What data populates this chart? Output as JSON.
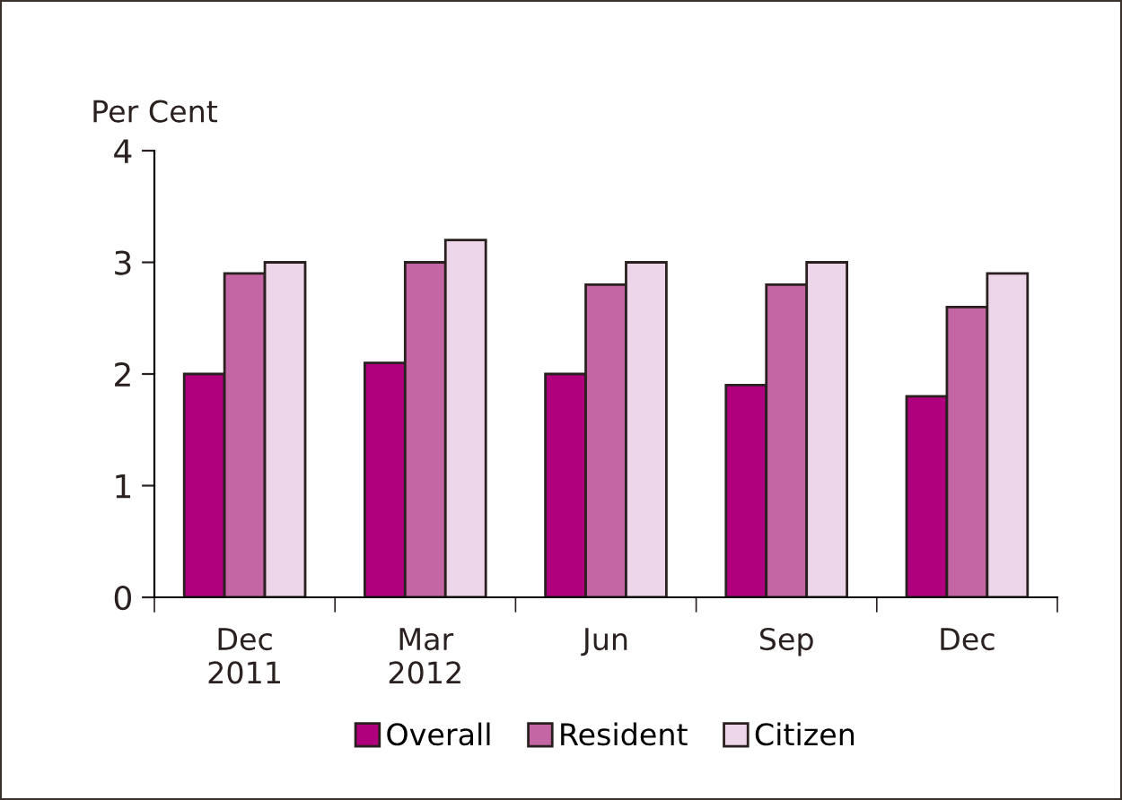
{
  "chart_data": {
    "type": "bar",
    "ylabel": "Per Cent",
    "categories": [
      "Dec\n2011",
      "Mar\n2012",
      "Jun",
      "Sep",
      "Dec"
    ],
    "series": [
      {
        "name": "Overall",
        "color": "#b0007e",
        "values": [
          2.0,
          2.1,
          2.0,
          1.9,
          1.8
        ]
      },
      {
        "name": "Resident",
        "color": "#c466a3",
        "values": [
          2.9,
          3.0,
          2.8,
          2.8,
          2.6
        ]
      },
      {
        "name": "Citizen",
        "color": "#eed6ea",
        "values": [
          3.0,
          3.2,
          3.0,
          3.0,
          2.9
        ]
      }
    ],
    "ylim": [
      0,
      4
    ],
    "yticks": [
      0,
      1,
      2,
      3,
      4
    ],
    "grid": false,
    "legend": "bottom"
  }
}
